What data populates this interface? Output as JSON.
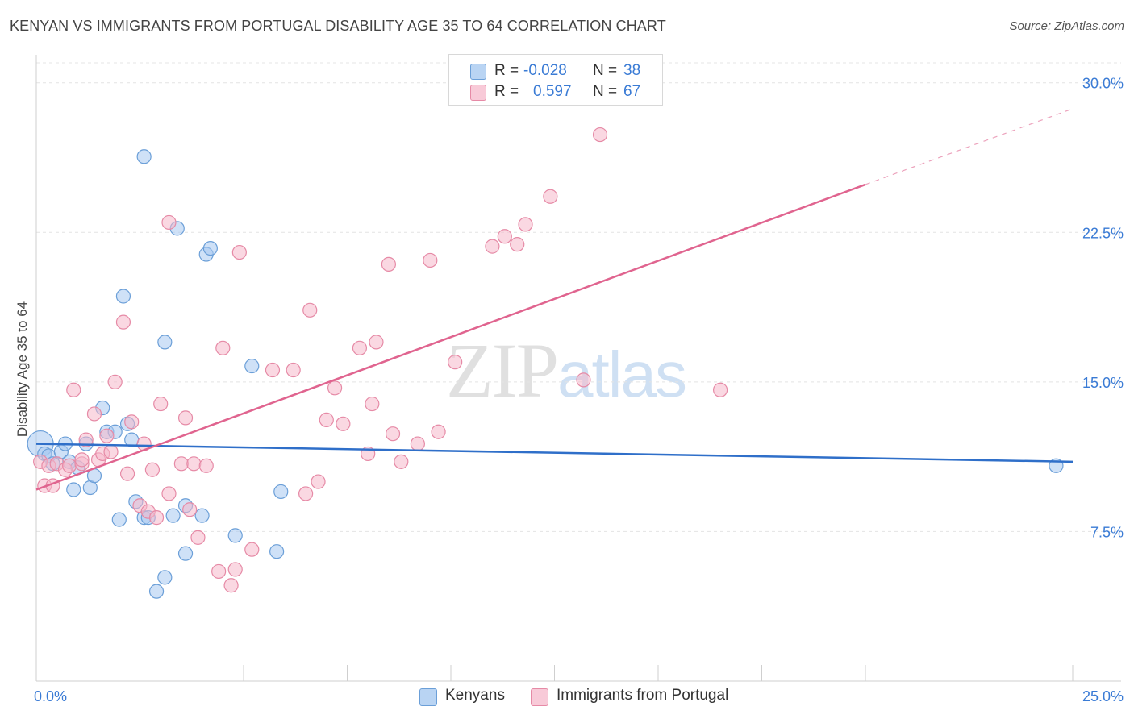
{
  "title": "KENYAN VS IMMIGRANTS FROM PORTUGAL DISABILITY AGE 35 TO 64 CORRELATION CHART",
  "source": "Source: ZipAtlas.com",
  "watermark": {
    "zip": "ZIP",
    "atlas": "atlas"
  },
  "legend": {
    "r_label": "R =",
    "n_label": "N =",
    "kenyans": {
      "r": "-0.028",
      "n": "38"
    },
    "portugal": {
      "r": "0.597",
      "n": "67"
    }
  },
  "bottom_legend": {
    "kenyans": "Kenyans",
    "portugal": "Immigrants from Portugal"
  },
  "colors": {
    "kenyans_fill": "#a8c8f0",
    "kenyans_stroke": "#6b9fd8",
    "kenyans_line": "#2f6fc9",
    "portugal_fill": "#f5b8cb",
    "portugal_stroke": "#e68aa6",
    "portugal_line": "#e0648f",
    "tick_label": "#3a7bd5",
    "grid": "#e4e4e4"
  },
  "chart_data": {
    "type": "scatter",
    "title": "KENYAN VS IMMIGRANTS FROM PORTUGAL DISABILITY AGE 35 TO 64 CORRELATION CHART",
    "xlabel": "",
    "ylabel": "Disability Age 35 to 64",
    "xlim": [
      0,
      25
    ],
    "ylim": [
      0,
      31
    ],
    "x_tick_labels": [
      "0.0%",
      "25.0%"
    ],
    "y_ticks": [
      7.5,
      15.0,
      22.5,
      30.0
    ],
    "y_tick_labels": [
      "7.5%",
      "15.0%",
      "22.5%",
      "30.0%"
    ],
    "grid": "horizontal dashed",
    "legend_position": "top-center",
    "series": [
      {
        "name": "Kenyans",
        "r": -0.028,
        "n": 38,
        "trend": {
          "x": [
            0,
            25
          ],
          "y": [
            11.9,
            11.0
          ]
        },
        "points": [
          [
            0.1,
            11.9
          ],
          [
            0.2,
            11.4
          ],
          [
            0.3,
            11.3
          ],
          [
            0.4,
            10.9
          ],
          [
            0.6,
            11.5
          ],
          [
            0.7,
            11.9
          ],
          [
            0.8,
            11.0
          ],
          [
            0.9,
            9.6
          ],
          [
            1.0,
            10.7
          ],
          [
            1.2,
            11.9
          ],
          [
            1.3,
            9.7
          ],
          [
            1.4,
            10.3
          ],
          [
            1.6,
            13.7
          ],
          [
            1.7,
            12.5
          ],
          [
            1.9,
            12.5
          ],
          [
            2.0,
            8.1
          ],
          [
            2.1,
            19.3
          ],
          [
            2.2,
            12.9
          ],
          [
            2.3,
            12.1
          ],
          [
            2.4,
            9.0
          ],
          [
            2.6,
            8.2
          ],
          [
            2.7,
            8.2
          ],
          [
            2.6,
            26.3
          ],
          [
            2.9,
            4.5
          ],
          [
            3.1,
            5.2
          ],
          [
            3.1,
            17.0
          ],
          [
            3.3,
            8.3
          ],
          [
            3.4,
            22.7
          ],
          [
            3.6,
            6.4
          ],
          [
            3.6,
            8.8
          ],
          [
            4.0,
            8.3
          ],
          [
            4.1,
            21.4
          ],
          [
            4.2,
            21.7
          ],
          [
            4.8,
            7.3
          ],
          [
            5.2,
            15.8
          ],
          [
            5.8,
            6.5
          ],
          [
            5.9,
            9.5
          ],
          [
            24.6,
            10.8
          ]
        ]
      },
      {
        "name": "Immigrants from Portugal",
        "r": 0.597,
        "n": 67,
        "trend": {
          "x": [
            0,
            20.0
          ],
          "y": [
            9.6,
            24.9
          ]
        },
        "trend_dashed_ext": {
          "x": [
            20.0,
            25
          ],
          "y": [
            24.9,
            28.7
          ]
        },
        "points": [
          [
            0.1,
            11.0
          ],
          [
            0.2,
            9.8
          ],
          [
            0.3,
            10.8
          ],
          [
            0.4,
            9.8
          ],
          [
            0.5,
            10.9
          ],
          [
            0.7,
            10.6
          ],
          [
            0.8,
            10.8
          ],
          [
            0.9,
            14.6
          ],
          [
            1.1,
            10.9
          ],
          [
            1.1,
            11.1
          ],
          [
            1.2,
            12.1
          ],
          [
            1.4,
            13.4
          ],
          [
            1.5,
            11.1
          ],
          [
            1.6,
            11.4
          ],
          [
            1.7,
            12.3
          ],
          [
            1.8,
            11.5
          ],
          [
            1.9,
            15.0
          ],
          [
            2.1,
            18.0
          ],
          [
            2.2,
            10.4
          ],
          [
            2.3,
            13.0
          ],
          [
            2.5,
            8.8
          ],
          [
            2.6,
            11.9
          ],
          [
            2.7,
            8.5
          ],
          [
            2.8,
            10.6
          ],
          [
            2.9,
            8.2
          ],
          [
            3.0,
            13.9
          ],
          [
            3.2,
            9.4
          ],
          [
            3.2,
            23.0
          ],
          [
            3.5,
            10.9
          ],
          [
            3.6,
            13.2
          ],
          [
            3.7,
            8.6
          ],
          [
            3.8,
            10.9
          ],
          [
            3.9,
            7.2
          ],
          [
            4.1,
            10.8
          ],
          [
            4.4,
            5.5
          ],
          [
            4.5,
            16.7
          ],
          [
            4.7,
            4.8
          ],
          [
            4.8,
            5.6
          ],
          [
            4.9,
            21.5
          ],
          [
            5.2,
            6.6
          ],
          [
            5.7,
            15.6
          ],
          [
            6.2,
            15.6
          ],
          [
            6.5,
            9.4
          ],
          [
            6.6,
            18.6
          ],
          [
            6.8,
            10.0
          ],
          [
            7.0,
            13.1
          ],
          [
            7.2,
            14.7
          ],
          [
            7.4,
            12.9
          ],
          [
            7.8,
            16.7
          ],
          [
            8.0,
            11.4
          ],
          [
            8.1,
            13.9
          ],
          [
            8.2,
            17.0
          ],
          [
            8.5,
            20.9
          ],
          [
            8.6,
            12.4
          ],
          [
            8.8,
            11.0
          ],
          [
            9.2,
            11.9
          ],
          [
            9.5,
            21.1
          ],
          [
            9.7,
            12.5
          ],
          [
            10.1,
            16.0
          ],
          [
            11.0,
            21.8
          ],
          [
            11.3,
            22.3
          ],
          [
            11.6,
            21.9
          ],
          [
            11.8,
            22.9
          ],
          [
            12.4,
            24.3
          ],
          [
            13.2,
            15.1
          ],
          [
            13.6,
            27.4
          ],
          [
            16.5,
            14.6
          ]
        ]
      }
    ]
  }
}
